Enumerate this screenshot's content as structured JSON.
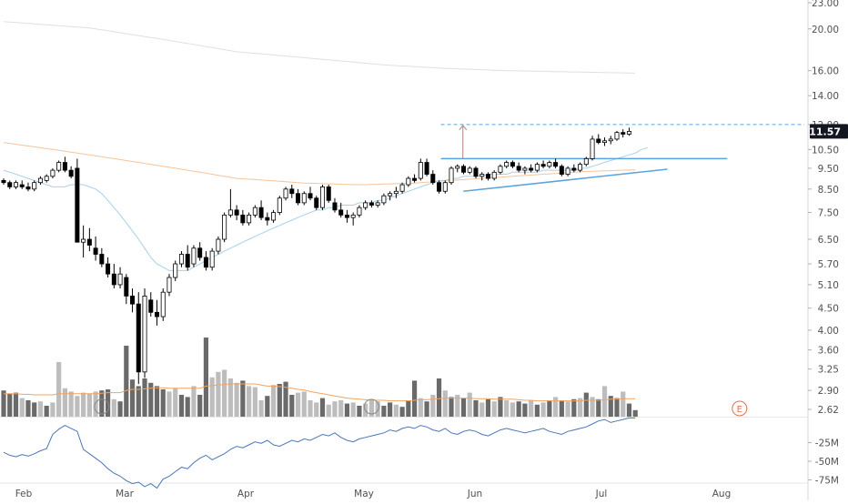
{
  "chart_data": {
    "type": "candlestick",
    "symbol": "",
    "price_axis": {
      "scale": "log",
      "ticks": [
        "23.00",
        "20.00",
        "16.00",
        "14.00",
        "12.00",
        "10.50",
        "9.50",
        "8.50",
        "7.50",
        "6.50",
        "5.70",
        "5.10",
        "4.50",
        "4.00",
        "3.60",
        "3.25",
        "2.90",
        "2.62"
      ],
      "last_price_label": "11.57",
      "last_price": 11.57,
      "last_price_color": "#131722"
    },
    "indicator_axis": {
      "ticks": [
        "-25M",
        "-50M",
        "-75M"
      ]
    },
    "time_axis": {
      "labels": [
        "Feb",
        "Mar",
        "Apr",
        "May",
        "Jun",
        "Jul",
        "Aug"
      ]
    },
    "candles": [
      [
        8.9,
        9.0,
        8.7,
        8.8
      ],
      [
        8.8,
        8.9,
        8.5,
        8.6
      ],
      [
        8.6,
        8.9,
        8.5,
        8.8
      ],
      [
        8.7,
        8.9,
        8.5,
        8.6
      ],
      [
        8.6,
        8.8,
        8.4,
        8.5
      ],
      [
        8.5,
        8.9,
        8.4,
        8.8
      ],
      [
        8.8,
        9.1,
        8.7,
        9.0
      ],
      [
        8.9,
        9.2,
        8.8,
        9.1
      ],
      [
        9.1,
        9.5,
        9.0,
        9.4
      ],
      [
        9.4,
        9.9,
        9.3,
        9.8
      ],
      [
        9.8,
        10.1,
        9.3,
        9.4
      ],
      [
        9.4,
        9.6,
        9.0,
        9.1
      ],
      [
        9.5,
        10.0,
        6.4,
        6.4
      ],
      [
        6.4,
        7.0,
        5.9,
        6.5
      ],
      [
        6.5,
        6.9,
        6.1,
        6.3
      ],
      [
        6.2,
        6.6,
        5.8,
        6.0
      ],
      [
        6.0,
        6.2,
        5.6,
        5.7
      ],
      [
        5.7,
        5.9,
        5.3,
        5.4
      ],
      [
        5.4,
        5.7,
        5.0,
        5.1
      ],
      [
        5.1,
        5.6,
        5.0,
        5.4
      ],
      [
        5.3,
        5.4,
        4.6,
        4.8
      ],
      [
        4.8,
        5.0,
        4.4,
        4.6
      ],
      [
        4.6,
        4.9,
        3.0,
        3.2
      ],
      [
        3.2,
        5.0,
        3.1,
        4.8
      ],
      [
        4.7,
        4.9,
        4.3,
        4.4
      ],
      [
        4.4,
        4.7,
        4.1,
        4.3
      ],
      [
        4.3,
        5.0,
        4.2,
        4.9
      ],
      [
        4.9,
        5.4,
        4.8,
        5.3
      ],
      [
        5.3,
        5.8,
        5.2,
        5.7
      ],
      [
        5.7,
        6.1,
        5.6,
        6.0
      ],
      [
        6.0,
        6.3,
        5.5,
        5.6
      ],
      [
        5.7,
        6.3,
        5.6,
        6.2
      ],
      [
        6.2,
        6.4,
        5.8,
        5.9
      ],
      [
        5.9,
        6.1,
        5.5,
        5.6
      ],
      [
        5.6,
        6.2,
        5.5,
        6.1
      ],
      [
        6.1,
        6.6,
        6.0,
        6.5
      ],
      [
        6.5,
        7.5,
        6.4,
        7.4
      ],
      [
        7.4,
        8.5,
        7.3,
        7.6
      ],
      [
        7.6,
        7.8,
        7.2,
        7.4
      ],
      [
        7.4,
        7.6,
        7.0,
        7.1
      ],
      [
        7.1,
        7.5,
        7.0,
        7.4
      ],
      [
        7.4,
        7.8,
        7.3,
        7.7
      ],
      [
        7.7,
        8.0,
        7.2,
        7.3
      ],
      [
        7.3,
        7.5,
        7.0,
        7.2
      ],
      [
        7.2,
        7.6,
        7.1,
        7.5
      ],
      [
        7.5,
        8.2,
        7.4,
        8.1
      ],
      [
        8.1,
        8.6,
        8.0,
        8.5
      ],
      [
        8.5,
        8.7,
        8.1,
        8.3
      ],
      [
        8.3,
        8.5,
        7.8,
        7.9
      ],
      [
        7.9,
        8.4,
        7.8,
        8.3
      ],
      [
        8.3,
        8.6,
        8.0,
        8.1
      ],
      [
        8.1,
        8.2,
        7.6,
        7.7
      ],
      [
        7.7,
        8.7,
        7.6,
        8.6
      ],
      [
        8.6,
        8.7,
        7.9,
        8.0
      ],
      [
        7.9,
        8.1,
        7.5,
        7.6
      ],
      [
        7.6,
        7.9,
        7.3,
        7.4
      ],
      [
        7.4,
        7.6,
        7.1,
        7.3
      ],
      [
        7.3,
        7.5,
        7.0,
        7.4
      ],
      [
        7.4,
        7.8,
        7.3,
        7.7
      ],
      [
        7.7,
        8.0,
        7.6,
        7.9
      ],
      [
        7.9,
        8.0,
        7.7,
        7.8
      ],
      [
        7.8,
        8.0,
        7.7,
        7.9
      ],
      [
        7.9,
        8.3,
        7.8,
        8.2
      ],
      [
        8.2,
        8.4,
        8.0,
        8.3
      ],
      [
        8.3,
        8.6,
        8.1,
        8.4
      ],
      [
        8.4,
        8.8,
        8.3,
        8.7
      ],
      [
        8.7,
        9.1,
        8.6,
        9.0
      ],
      [
        9.0,
        9.2,
        8.8,
        8.9
      ],
      [
        9.0,
        10.0,
        8.9,
        9.8
      ],
      [
        9.8,
        10.0,
        9.1,
        9.2
      ],
      [
        9.2,
        9.4,
        8.7,
        8.8
      ],
      [
        8.8,
        8.9,
        8.3,
        8.4
      ],
      [
        8.4,
        8.9,
        8.3,
        8.8
      ],
      [
        8.8,
        9.6,
        8.7,
        9.5
      ],
      [
        9.5,
        9.7,
        9.3,
        9.6
      ],
      [
        9.6,
        9.7,
        9.2,
        9.3
      ],
      [
        9.3,
        9.6,
        9.2,
        9.5
      ],
      [
        9.5,
        9.6,
        9.0,
        9.1
      ],
      [
        9.1,
        9.3,
        8.9,
        9.2
      ],
      [
        9.2,
        9.3,
        8.9,
        9.0
      ],
      [
        9.0,
        9.4,
        8.9,
        9.3
      ],
      [
        9.3,
        9.7,
        9.2,
        9.6
      ],
      [
        9.6,
        9.9,
        9.5,
        9.8
      ],
      [
        9.8,
        9.9,
        9.5,
        9.6
      ],
      [
        9.6,
        9.8,
        9.3,
        9.4
      ],
      [
        9.4,
        9.6,
        9.2,
        9.5
      ],
      [
        9.5,
        9.7,
        9.3,
        9.4
      ],
      [
        9.4,
        9.8,
        9.3,
        9.7
      ],
      [
        9.7,
        9.9,
        9.5,
        9.6
      ],
      [
        9.6,
        9.9,
        9.5,
        9.8
      ],
      [
        9.8,
        10.0,
        9.5,
        9.6
      ],
      [
        9.6,
        9.7,
        9.1,
        9.2
      ],
      [
        9.2,
        9.6,
        9.1,
        9.5
      ],
      [
        9.5,
        9.7,
        9.3,
        9.4
      ],
      [
        9.4,
        9.8,
        9.3,
        9.7
      ],
      [
        9.7,
        10.1,
        9.6,
        10.0
      ],
      [
        10.0,
        11.3,
        9.9,
        11.1
      ],
      [
        11.1,
        11.4,
        10.8,
        10.9
      ],
      [
        10.9,
        11.2,
        10.7,
        11.0
      ],
      [
        11.0,
        11.3,
        10.8,
        11.1
      ],
      [
        11.1,
        11.6,
        11.0,
        11.5
      ],
      [
        11.5,
        11.7,
        11.2,
        11.4
      ],
      [
        11.4,
        11.8,
        11.3,
        11.57
      ]
    ],
    "volume": [
      [
        0.48,
        "d"
      ],
      [
        0.42,
        "d"
      ],
      [
        0.44,
        "d"
      ],
      [
        0.34,
        "l"
      ],
      [
        0.3,
        "d"
      ],
      [
        0.26,
        "d"
      ],
      [
        0.28,
        "l"
      ],
      [
        0.2,
        "d"
      ],
      [
        0.26,
        "l"
      ],
      [
        1.0,
        "l"
      ],
      [
        0.52,
        "l"
      ],
      [
        0.46,
        "l"
      ],
      [
        0.38,
        "l"
      ],
      [
        0.44,
        "l"
      ],
      [
        0.42,
        "l"
      ],
      [
        0.46,
        "l"
      ],
      [
        0.48,
        "d"
      ],
      [
        0.5,
        "d"
      ],
      [
        0.32,
        "l"
      ],
      [
        0.28,
        "d"
      ],
      [
        1.3,
        "d"
      ],
      [
        0.68,
        "d"
      ],
      [
        0.56,
        "d"
      ],
      [
        0.7,
        "d"
      ],
      [
        0.62,
        "d"
      ],
      [
        0.56,
        "d"
      ],
      [
        0.5,
        "d"
      ],
      [
        0.46,
        "l"
      ],
      [
        0.52,
        "l"
      ],
      [
        0.4,
        "d"
      ],
      [
        0.36,
        "d"
      ],
      [
        0.56,
        "l"
      ],
      [
        0.4,
        "d"
      ],
      [
        1.45,
        "d"
      ],
      [
        0.72,
        "l"
      ],
      [
        0.82,
        "l"
      ],
      [
        0.86,
        "l"
      ],
      [
        0.7,
        "l"
      ],
      [
        0.62,
        "l"
      ],
      [
        0.66,
        "d"
      ],
      [
        0.56,
        "l"
      ],
      [
        0.54,
        "l"
      ],
      [
        0.3,
        "l"
      ],
      [
        0.38,
        "d"
      ],
      [
        0.58,
        "l"
      ],
      [
        0.6,
        "d"
      ],
      [
        0.64,
        "d"
      ],
      [
        0.4,
        "d"
      ],
      [
        0.44,
        "l"
      ],
      [
        0.46,
        "l"
      ],
      [
        0.3,
        "l"
      ],
      [
        0.26,
        "l"
      ],
      [
        0.34,
        "d"
      ],
      [
        0.22,
        "l"
      ],
      [
        0.28,
        "l"
      ],
      [
        0.3,
        "l"
      ],
      [
        0.24,
        "d"
      ],
      [
        0.26,
        "l"
      ],
      [
        0.2,
        "d"
      ],
      [
        0.24,
        "l"
      ],
      [
        0.32,
        "l"
      ],
      [
        0.28,
        "l"
      ],
      [
        0.2,
        "d"
      ],
      [
        0.26,
        "d"
      ],
      [
        0.22,
        "l"
      ],
      [
        0.18,
        "d"
      ],
      [
        0.3,
        "d"
      ],
      [
        0.66,
        "d"
      ],
      [
        0.34,
        "l"
      ],
      [
        0.28,
        "d"
      ],
      [
        0.4,
        "l"
      ],
      [
        0.7,
        "d"
      ],
      [
        0.48,
        "l"
      ],
      [
        0.36,
        "d"
      ],
      [
        0.4,
        "l"
      ],
      [
        0.34,
        "d"
      ],
      [
        0.44,
        "l"
      ],
      [
        0.3,
        "d"
      ],
      [
        0.26,
        "l"
      ],
      [
        0.32,
        "d"
      ],
      [
        0.28,
        "l"
      ],
      [
        0.36,
        "d"
      ],
      [
        0.3,
        "l"
      ],
      [
        0.26,
        "l"
      ],
      [
        0.28,
        "d"
      ],
      [
        0.24,
        "d"
      ],
      [
        0.3,
        "l"
      ],
      [
        0.22,
        "d"
      ],
      [
        0.26,
        "l"
      ],
      [
        0.3,
        "d"
      ],
      [
        0.36,
        "l"
      ],
      [
        0.3,
        "d"
      ],
      [
        0.28,
        "l"
      ],
      [
        0.32,
        "d"
      ],
      [
        0.34,
        "l"
      ],
      [
        0.44,
        "d"
      ],
      [
        0.36,
        "l"
      ],
      [
        0.32,
        "d"
      ],
      [
        0.56,
        "l"
      ],
      [
        0.38,
        "d"
      ],
      [
        0.34,
        "d"
      ],
      [
        0.46,
        "l"
      ],
      [
        0.24,
        "d"
      ],
      [
        0.12,
        "d"
      ]
    ],
    "volume_ma": [
      0.42,
      0.42,
      0.42,
      0.41,
      0.41,
      0.4,
      0.4,
      0.4,
      0.4,
      0.42,
      0.42,
      0.42,
      0.42,
      0.42,
      0.42,
      0.42,
      0.43,
      0.44,
      0.44,
      0.44,
      0.48,
      0.5,
      0.5,
      0.51,
      0.52,
      0.53,
      0.53,
      0.52,
      0.52,
      0.52,
      0.52,
      0.52,
      0.52,
      0.56,
      0.57,
      0.58,
      0.59,
      0.6,
      0.6,
      0.6,
      0.6,
      0.6,
      0.58,
      0.56,
      0.56,
      0.55,
      0.54,
      0.52,
      0.5,
      0.49,
      0.46,
      0.44,
      0.42,
      0.4,
      0.38,
      0.36,
      0.34,
      0.33,
      0.32,
      0.31,
      0.3,
      0.3,
      0.3,
      0.29,
      0.29,
      0.29,
      0.29,
      0.3,
      0.31,
      0.31,
      0.32,
      0.33,
      0.34,
      0.34,
      0.34,
      0.34,
      0.34,
      0.33,
      0.33,
      0.33,
      0.32,
      0.32,
      0.32,
      0.32,
      0.31,
      0.3,
      0.3,
      0.29,
      0.29,
      0.29,
      0.29,
      0.29,
      0.29,
      0.29,
      0.29,
      0.3,
      0.3,
      0.3,
      0.31,
      0.32,
      0.32,
      0.33,
      0.33,
      0.33
    ],
    "ma20": [
      9.4,
      9.3,
      9.2,
      9.1,
      9.0,
      8.9,
      8.8,
      8.7,
      8.6,
      8.6,
      8.6,
      8.7,
      8.7,
      8.7,
      8.6,
      8.5,
      8.3,
      8.0,
      7.7,
      7.4,
      7.1,
      6.8,
      6.5,
      6.2,
      5.9,
      5.7,
      5.6,
      5.5,
      5.5,
      5.5,
      5.5,
      5.6,
      5.7,
      5.8,
      5.9,
      6.0,
      6.1,
      6.2,
      6.3,
      6.4,
      6.5,
      6.6,
      6.7,
      6.8,
      6.9,
      7.0,
      7.1,
      7.2,
      7.3,
      7.4,
      7.5,
      7.6,
      7.6,
      7.7,
      7.7,
      7.8,
      7.8,
      7.8,
      7.9,
      7.9,
      7.9,
      8.0,
      8.0,
      8.1,
      8.2,
      8.3,
      8.4,
      8.5,
      8.6,
      8.7,
      8.8,
      8.9,
      8.9,
      9.0,
      9.0,
      9.1,
      9.1,
      9.1,
      9.1,
      9.2,
      9.2,
      9.2,
      9.2,
      9.3,
      9.3,
      9.3,
      9.3,
      9.3,
      9.4,
      9.4,
      9.4,
      9.4,
      9.4,
      9.4,
      9.5,
      9.5,
      9.6,
      9.7,
      9.8,
      9.9,
      10.0,
      10.1,
      10.2,
      10.3,
      10.5,
      10.6
    ],
    "ma200": [
      10.9,
      10.85,
      10.8,
      10.75,
      10.7,
      10.65,
      10.6,
      10.55,
      10.5,
      10.45,
      10.4,
      10.35,
      10.3,
      10.25,
      10.2,
      10.15,
      10.1,
      10.05,
      10.0,
      9.95,
      9.9,
      9.85,
      9.8,
      9.75,
      9.7,
      9.65,
      9.6,
      9.55,
      9.5,
      9.45,
      9.4,
      9.35,
      9.3,
      9.25,
      9.2,
      9.15,
      9.1,
      9.05,
      9.0,
      8.98,
      8.96,
      8.94,
      8.92,
      8.9,
      8.88,
      8.86,
      8.84,
      8.82,
      8.8,
      8.78,
      8.77,
      8.76,
      8.75,
      8.74,
      8.73,
      8.72,
      8.71,
      8.7,
      8.7,
      8.7,
      8.71,
      8.72,
      8.73,
      8.74,
      8.75,
      8.76,
      8.77,
      8.78,
      8.8,
      8.82,
      8.84,
      8.86,
      8.88,
      8.9,
      8.92,
      8.94,
      8.96,
      8.98,
      9.0,
      9.02,
      9.04,
      9.06,
      9.08,
      9.1,
      9.12,
      9.14,
      9.16,
      9.18,
      9.2,
      9.22,
      9.24,
      9.26,
      9.28,
      9.3,
      9.32,
      9.34,
      9.35,
      9.36,
      9.37,
      9.38,
      9.39,
      9.4,
      9.41,
      9.42
    ],
    "ma_top": [
      20.8,
      20.75,
      20.7,
      20.65,
      20.6,
      20.55,
      20.5,
      20.45,
      20.4,
      20.35,
      20.3,
      20.25,
      20.2,
      20.15,
      20.1,
      20.0,
      19.9,
      19.8,
      19.7,
      19.6,
      19.5,
      19.4,
      19.3,
      19.2,
      19.1,
      19.0,
      18.9,
      18.8,
      18.7,
      18.6,
      18.5,
      18.4,
      18.3,
      18.2,
      18.1,
      18.0,
      17.9,
      17.8,
      17.7,
      17.65,
      17.6,
      17.55,
      17.5,
      17.45,
      17.4,
      17.35,
      17.3,
      17.25,
      17.2,
      17.15,
      17.1,
      17.05,
      17.0,
      16.95,
      16.9,
      16.85,
      16.8,
      16.75,
      16.7,
      16.65,
      16.6,
      16.55,
      16.5,
      16.47,
      16.44,
      16.41,
      16.38,
      16.35,
      16.32,
      16.29,
      16.26,
      16.23,
      16.2,
      16.18,
      16.16,
      16.14,
      16.12,
      16.1,
      16.08,
      16.06,
      16.04,
      16.02,
      16.0,
      15.99,
      15.98,
      15.97,
      15.96,
      15.95,
      15.94,
      15.93,
      15.92,
      15.91,
      15.9,
      15.89,
      15.88,
      15.87,
      15.86,
      15.85,
      15.84,
      15.83,
      15.82,
      15.81,
      15.8,
      15.79
    ],
    "indicator": [
      -38,
      -42,
      -44,
      -41,
      -43,
      -40,
      -36,
      -33,
      -14,
      -7,
      -2,
      -6,
      -10,
      -34,
      -40,
      -46,
      -52,
      -60,
      -66,
      -70,
      -76,
      -80,
      -78,
      -84,
      -80,
      -86,
      -74,
      -70,
      -64,
      -58,
      -60,
      -52,
      -46,
      -42,
      -48,
      -44,
      -40,
      -34,
      -30,
      -32,
      -28,
      -24,
      -26,
      -22,
      -28,
      -30,
      -26,
      -22,
      -24,
      -20,
      -22,
      -18,
      -14,
      -16,
      -12,
      -18,
      -22,
      -24,
      -20,
      -18,
      -16,
      -14,
      -12,
      -8,
      -10,
      -6,
      -4,
      -6,
      -2,
      -4,
      -8,
      -10,
      -6,
      -12,
      -14,
      -10,
      -8,
      -10,
      -14,
      -16,
      -12,
      -8,
      -6,
      -8,
      -10,
      -12,
      -10,
      -8,
      -6,
      -10,
      -12,
      -14,
      -10,
      -8,
      -6,
      -4,
      0,
      4,
      6,
      2,
      4,
      6,
      8,
      8
    ],
    "annotations": {
      "resistance_level": 10.0,
      "target_level": 12.0,
      "trendline": {
        "start_index": 72,
        "end_index": 102,
        "start_price": 8.4,
        "end_price": 9.45
      },
      "arrow": {
        "index": 74,
        "from": 10.0,
        "to": 12.0
      },
      "event_markers": [
        "E"
      ]
    },
    "colors": {
      "candle_up_body": "#ffffff",
      "candle_down_body": "#000000",
      "candle_outline": "#000000",
      "volume_dark": "#6a6a6a",
      "volume_light": "#bdbdbd",
      "volume_ma": "#f4a460",
      "ma20": "#a8d0e8",
      "ma200": "#f6c49a",
      "ma_top": "#e0e0e0",
      "indicator": "#4a76b8",
      "annotation_blue": "#5aa3e0",
      "arrow": "#b08080",
      "event_circle": "#e07050",
      "grid": "#f1f1f1",
      "axis_text": "#505050"
    }
  }
}
